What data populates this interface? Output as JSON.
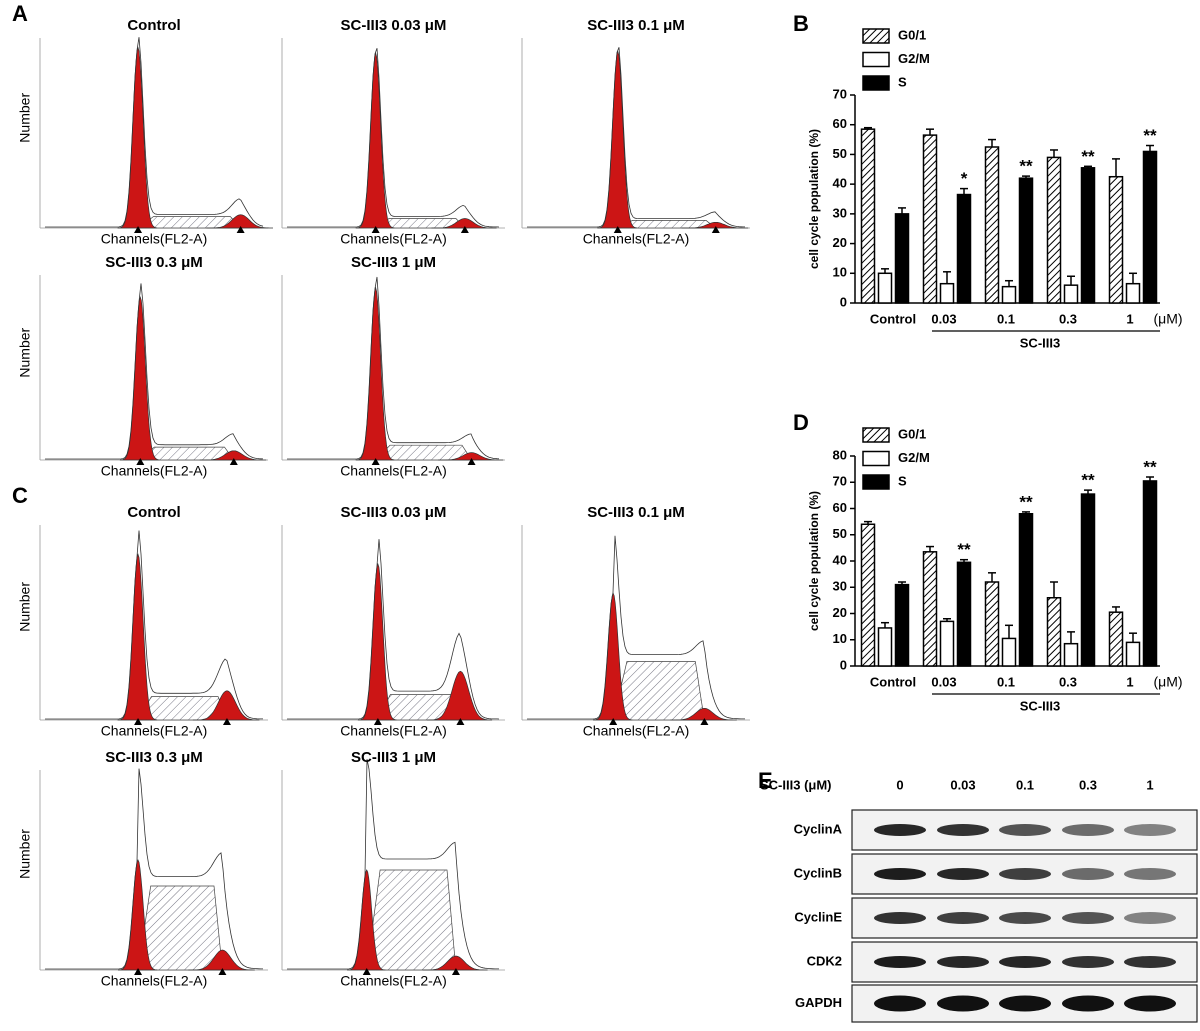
{
  "chart_data": [
    {
      "type": "bar",
      "panel": "B",
      "ylabel": "cell cycle population (%)",
      "categories": [
        "Control",
        "0.03",
        "0.1",
        "0.3",
        "1"
      ],
      "x_unit": "(μM)",
      "group_label": "SC-III3",
      "ylim": [
        0,
        70
      ],
      "yticks": [
        0,
        10,
        20,
        30,
        40,
        50,
        60,
        70
      ],
      "grid": false,
      "series": [
        {
          "name": "G0/1",
          "color": "#ffffff",
          "hatch": true,
          "values": [
            58.5,
            56.5,
            52.5,
            49,
            42.5
          ],
          "errors": [
            0.5,
            2,
            2.5,
            2.5,
            6
          ]
        },
        {
          "name": "G2/M",
          "color": "#ffffff",
          "hatch": false,
          "values": [
            10,
            6.5,
            5.5,
            6,
            6.5
          ],
          "errors": [
            1.5,
            4,
            2,
            3,
            3.5
          ]
        },
        {
          "name": "S",
          "color": "#000000",
          "hatch": false,
          "values": [
            30,
            36.5,
            42,
            45.5,
            51
          ],
          "errors": [
            2,
            2,
            0.7,
            0.5,
            2
          ],
          "annotations": [
            null,
            "*",
            "**",
            "**",
            "**"
          ]
        }
      ]
    },
    {
      "type": "bar",
      "panel": "D",
      "ylabel": "cell cycle population (%)",
      "categories": [
        "Control",
        "0.03",
        "0.1",
        "0.3",
        "1"
      ],
      "x_unit": "(μM)",
      "group_label": "SC-III3",
      "ylim": [
        0,
        80
      ],
      "yticks": [
        0,
        10,
        20,
        30,
        40,
        50,
        60,
        70,
        80
      ],
      "grid": false,
      "series": [
        {
          "name": "G0/1",
          "color": "#ffffff",
          "hatch": true,
          "values": [
            54,
            43.5,
            32,
            26,
            20.5
          ],
          "errors": [
            1,
            2,
            3.5,
            6,
            2
          ]
        },
        {
          "name": "G2/M",
          "color": "#ffffff",
          "hatch": false,
          "values": [
            14.5,
            17,
            10.5,
            8.5,
            9
          ],
          "errors": [
            2,
            1,
            5,
            4.5,
            3.5
          ]
        },
        {
          "name": "S",
          "color": "#000000",
          "hatch": false,
          "values": [
            31,
            39.5,
            58,
            65.5,
            70.5
          ],
          "errors": [
            1,
            1,
            0.7,
            1.5,
            1.5
          ],
          "annotations": [
            null,
            "**",
            "**",
            "**",
            "**"
          ]
        }
      ]
    }
  ],
  "flow_panels": [
    {
      "label": "A",
      "plots": [
        {
          "title": "Control",
          "xlabel": "Channels(FL2-A)",
          "ylabel": "Number"
        },
        {
          "title": "SC-III3 0.03 μM",
          "xlabel": "Channels(FL2-A)"
        },
        {
          "title": "SC-III3 0.1 μM",
          "xlabel": "Channels(FL2-A)"
        },
        {
          "title": "SC-III3 0.3 μM",
          "xlabel": "Channels(FL2-A)",
          "ylabel": "Number"
        },
        {
          "title": "SC-III3 1 μM",
          "xlabel": "Channels(FL2-A)"
        }
      ]
    },
    {
      "label": "C",
      "plots": [
        {
          "title": "Control",
          "xlabel": "Channels(FL2-A)",
          "ylabel": "Number"
        },
        {
          "title": "SC-III3 0.03 μM",
          "xlabel": "Channels(FL2-A)"
        },
        {
          "title": "SC-III3 0.1 μM",
          "xlabel": "Channels(FL2-A)"
        },
        {
          "title": "SC-III3 0.3 μM",
          "xlabel": "Channels(FL2-A)",
          "ylabel": "Number"
        },
        {
          "title": "SC-III3 1 μM",
          "xlabel": "Channels(FL2-A)"
        }
      ]
    }
  ],
  "western_blot": {
    "label": "E",
    "dose_label": "SC-III3 (μM)",
    "doses": [
      "0",
      "0.03",
      "0.1",
      "0.3",
      "1"
    ],
    "proteins": [
      "CyclinA",
      "CyclinB",
      "CyclinE",
      "CDK2",
      "GAPDH"
    ]
  }
}
